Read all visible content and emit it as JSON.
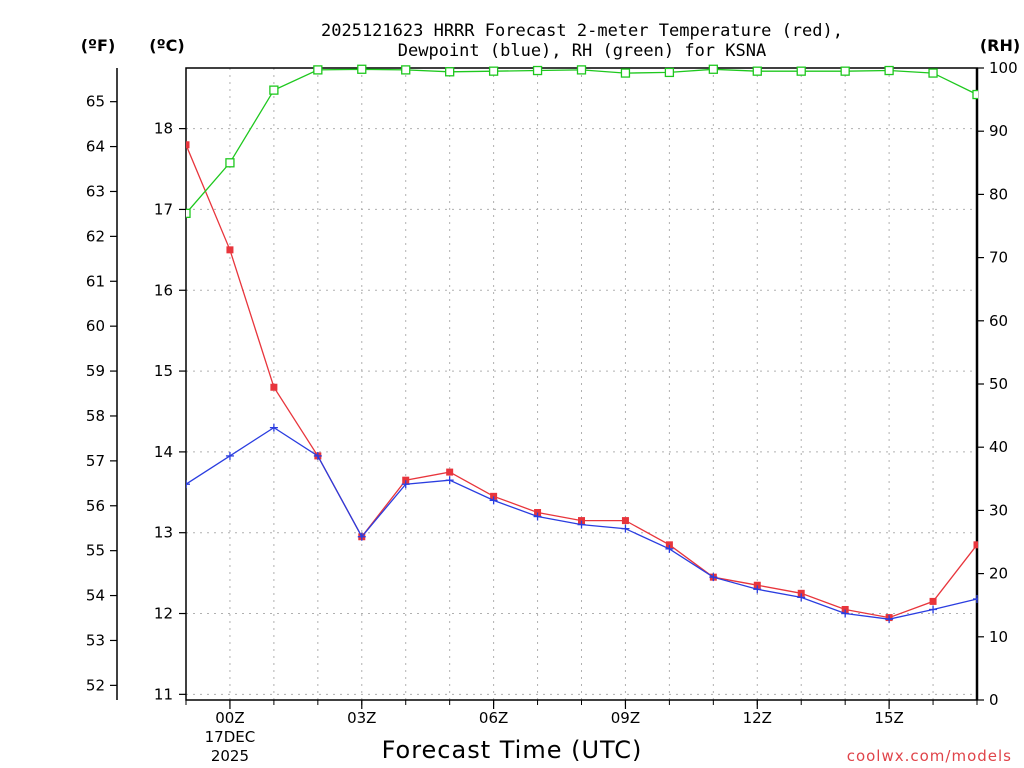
{
  "chart_data": {
    "type": "line",
    "title_line1": "2025121623 HRRR Forecast 2-meter Temperature (red),",
    "title_line2": "Dewpoint (blue), RH (green) for KSNA",
    "xlabel": "Forecast Time (UTC)",
    "units": {
      "f": "(ºF)",
      "c": "(ºC)",
      "rh": "(RH)"
    },
    "x_hours": [
      -1,
      0,
      1,
      2,
      3,
      4,
      5,
      6,
      7,
      8,
      9,
      10,
      11,
      12,
      13,
      14,
      15,
      16,
      17
    ],
    "x_ticks": [
      {
        "hour": 0,
        "label": "00Z",
        "sub1": "17DEC",
        "sub2": "2025"
      },
      {
        "hour": 3,
        "label": "03Z"
      },
      {
        "hour": 6,
        "label": "06Z"
      },
      {
        "hour": 9,
        "label": "09Z"
      },
      {
        "hour": 12,
        "label": "12Z"
      },
      {
        "hour": 15,
        "label": "15Z"
      }
    ],
    "xlim": [
      -1,
      17
    ],
    "c_ylim": [
      10.93,
      18.75
    ],
    "c_ticks": [
      "11",
      "12",
      "13",
      "14",
      "15",
      "16",
      "17",
      "18"
    ],
    "f_ticks": [
      "52",
      "53",
      "54",
      "55",
      "56",
      "57",
      "58",
      "59",
      "60",
      "61",
      "62",
      "63",
      "64",
      "65"
    ],
    "rh_ylim": [
      0,
      100
    ],
    "rh_ticks": [
      "0",
      "10",
      "20",
      "30",
      "40",
      "50",
      "60",
      "70",
      "80",
      "90",
      "100"
    ],
    "series": [
      {
        "name": "Temperature",
        "units": "C",
        "color": "#e8353c",
        "marker": "square-filled",
        "values": [
          17.8,
          16.5,
          14.8,
          13.95,
          12.95,
          13.65,
          13.75,
          13.45,
          13.25,
          13.15,
          13.15,
          12.85,
          12.45,
          12.35,
          12.25,
          12.05,
          11.95,
          12.15,
          12.85
        ]
      },
      {
        "name": "Dewpoint",
        "units": "C",
        "color": "#2a3de0",
        "marker": "plus",
        "values": [
          13.6,
          13.95,
          14.3,
          13.95,
          12.95,
          13.6,
          13.65,
          13.4,
          13.2,
          13.1,
          13.05,
          12.8,
          12.45,
          12.3,
          12.2,
          12.0,
          11.93,
          12.05,
          12.18
        ]
      },
      {
        "name": "RH",
        "units": "%",
        "color": "#1ec81e",
        "marker": "square-open",
        "values": [
          77,
          85,
          96.5,
          99.7,
          99.8,
          99.7,
          99.4,
          99.5,
          99.6,
          99.7,
          99.2,
          99.3,
          99.8,
          99.5,
          99.5,
          99.5,
          99.6,
          99.2,
          95.8
        ]
      }
    ],
    "grid": true
  },
  "credit": "coolwx.com/models"
}
